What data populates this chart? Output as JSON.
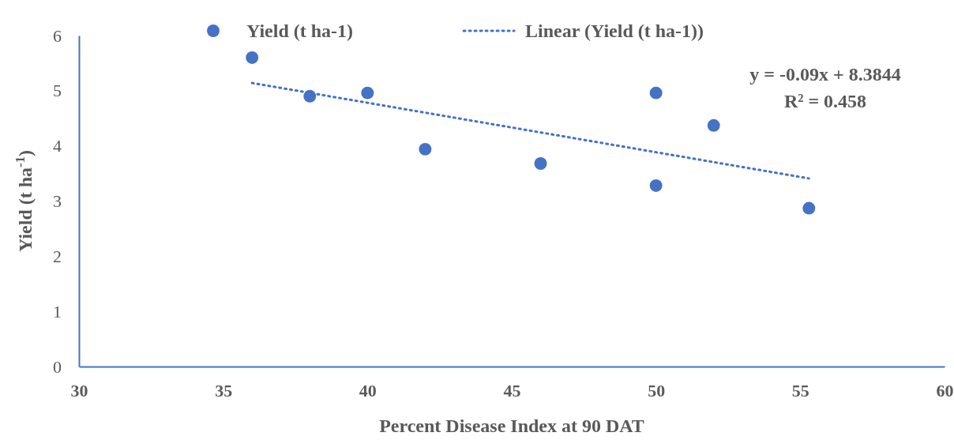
{
  "chart_data": {
    "type": "scatter",
    "xlabel": "Percent Disease Index at 90 DAT",
    "ylabel": "Yield  (t ha$^{-1}$)",
    "xlim": [
      30,
      60
    ],
    "xticks": [
      30,
      35,
      40,
      45,
      50,
      55,
      60
    ],
    "ylim": [
      0,
      6
    ],
    "yticks": [
      0,
      1,
      2,
      3,
      4,
      5,
      6
    ],
    "legend": "top",
    "series": [
      {
        "name": "Yield (t ha-1)",
        "marker": "circle",
        "color": "#4472c4",
        "x": [
          36,
          38,
          40,
          42,
          46,
          50,
          50,
          52,
          55.3
        ],
        "values": [
          5.6,
          4.9,
          4.96,
          3.94,
          3.68,
          4.96,
          3.28,
          4.37,
          2.87
        ]
      },
      {
        "name": "Linear (Yield (t ha-1))",
        "type": "line",
        "color": "#4472c4",
        "line_style": "dotted",
        "marker": "none",
        "x": [
          36,
          55.3
        ],
        "values": [
          5.14,
          3.41
        ]
      }
    ],
    "annotations": [
      "y = -0.09x + 8.3844",
      "R² = 0.458"
    ]
  }
}
